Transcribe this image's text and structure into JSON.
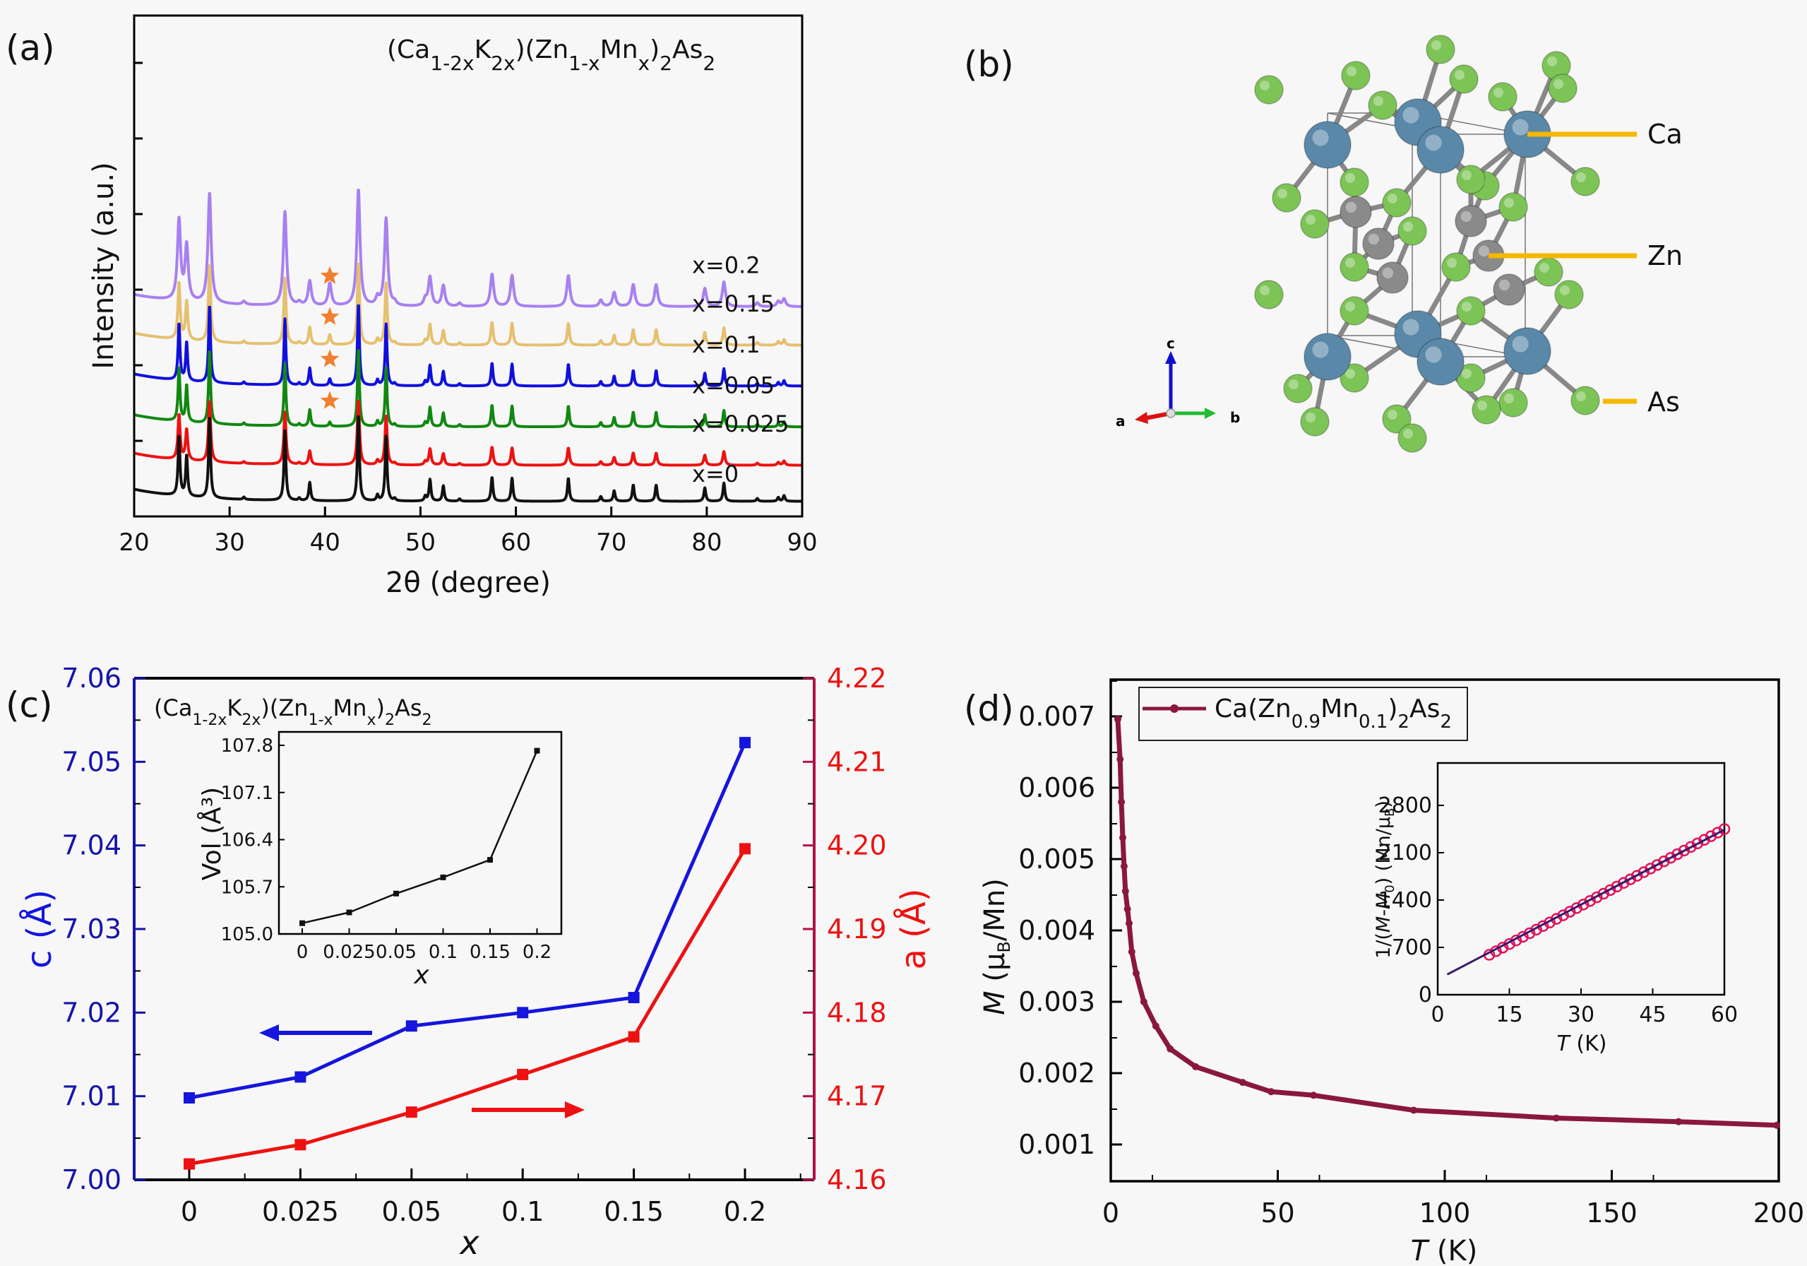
{
  "figure": {
    "panel_labels": [
      "(a)",
      "(b)",
      "(c)",
      "(d)"
    ]
  },
  "chart_data": [
    {
      "id": "a",
      "type": "line",
      "title": "(Ca1-2xK2x)(Zn1-xMnx)2As2",
      "title_parts": [
        [
          "(Ca",
          ""
        ],
        [
          "1-2x",
          "sub"
        ],
        [
          "K",
          ""
        ],
        [
          "2x",
          "sub"
        ],
        [
          ")(Zn",
          ""
        ],
        [
          "1-x",
          "sub"
        ],
        [
          "Mn",
          ""
        ],
        [
          "x",
          "sub"
        ],
        [
          ")",
          ""
        ],
        [
          "2",
          "sub"
        ],
        [
          "As",
          ""
        ],
        [
          "2",
          "sub"
        ]
      ],
      "xlabel": "2θ (degree)",
      "ylabel": "Intensity (a.u.)",
      "xlim": [
        20,
        90
      ],
      "xticks": [
        20,
        30,
        40,
        50,
        60,
        70,
        80,
        90
      ],
      "ylim": [
        0,
        10
      ],
      "impurity_marker": "star",
      "impurity_peak_2theta": 40.5,
      "base_peaks": [
        {
          "pos": 24.7,
          "h": 1.25
        },
        {
          "pos": 25.5,
          "h": 0.85
        },
        {
          "pos": 27.9,
          "h": 1.7
        },
        {
          "pos": 31.5,
          "h": 0.05
        },
        {
          "pos": 35.8,
          "h": 1.45
        },
        {
          "pos": 37.3,
          "h": 0.05
        },
        {
          "pos": 38.4,
          "h": 0.38
        },
        {
          "pos": 43.5,
          "h": 1.8
        },
        {
          "pos": 45.5,
          "h": 0.12
        },
        {
          "pos": 46.4,
          "h": 1.35
        },
        {
          "pos": 47.3,
          "h": 0.05
        },
        {
          "pos": 50.5,
          "h": 0.1
        },
        {
          "pos": 51.0,
          "h": 0.45
        },
        {
          "pos": 52.4,
          "h": 0.32
        },
        {
          "pos": 54.1,
          "h": 0.05
        },
        {
          "pos": 57.5,
          "h": 0.5
        },
        {
          "pos": 59.6,
          "h": 0.48
        },
        {
          "pos": 65.5,
          "h": 0.48
        },
        {
          "pos": 68.9,
          "h": 0.1
        },
        {
          "pos": 70.3,
          "h": 0.22
        },
        {
          "pos": 72.3,
          "h": 0.34
        },
        {
          "pos": 74.7,
          "h": 0.34
        },
        {
          "pos": 79.8,
          "h": 0.28
        },
        {
          "pos": 81.8,
          "h": 0.38
        },
        {
          "pos": 85.3,
          "h": 0.06
        },
        {
          "pos": 87.5,
          "h": 0.08
        },
        {
          "pos": 88.1,
          "h": 0.12
        }
      ],
      "series": [
        {
          "name": "x=0",
          "color": "#111111",
          "offset": 0.0,
          "scale": 1.0,
          "width": 0.12,
          "impurity": 0.0,
          "star": false
        },
        {
          "name": "x=0.025",
          "color": "#ee1111",
          "offset": 0.75,
          "scale": 0.75,
          "width": 0.14,
          "impurity": 0.0,
          "star": false
        },
        {
          "name": "x=0.05",
          "color": "#108810",
          "offset": 1.55,
          "scale": 0.9,
          "width": 0.12,
          "impurity": 0.1,
          "star": true
        },
        {
          "name": "x=0.1",
          "color": "#1010dd",
          "offset": 2.4,
          "scale": 0.95,
          "width": 0.12,
          "impurity": 0.15,
          "star": true
        },
        {
          "name": "x=0.15",
          "color": "#e6c070",
          "offset": 3.25,
          "scale": 0.95,
          "width": 0.14,
          "impurity": 0.22,
          "star": true
        },
        {
          "name": "x=0.2",
          "color": "#a880f0",
          "offset": 4.05,
          "scale": 1.35,
          "width": 0.2,
          "impurity": 0.35,
          "star": true
        }
      ]
    },
    {
      "id": "c",
      "type": "line",
      "title_parts": [
        [
          "(Ca",
          ""
        ],
        [
          "1-2x",
          "sub"
        ],
        [
          "K",
          ""
        ],
        [
          "2x",
          "sub"
        ],
        [
          ")(Zn",
          ""
        ],
        [
          "1-x",
          "sub"
        ],
        [
          "Mn",
          ""
        ],
        [
          "x",
          "sub"
        ],
        [
          ")",
          ""
        ],
        [
          "2",
          "sub"
        ],
        [
          "As",
          ""
        ],
        [
          "2",
          "sub"
        ]
      ],
      "categories": [
        "0",
        "0.025",
        "0.05",
        "0.1",
        "0.15",
        "0.2"
      ],
      "xlabel": "x",
      "series": [
        {
          "name": "c",
          "axis": "left",
          "color": "#1515dd",
          "values": [
            7.0098,
            7.0123,
            7.0184,
            7.02,
            7.0218,
            7.0523
          ]
        },
        {
          "name": "a",
          "axis": "right",
          "color": "#ee1111",
          "values": [
            4.1619,
            4.1642,
            4.1681,
            4.1726,
            4.1771,
            4.1996
          ]
        }
      ],
      "ylabel_left": "c (Å)",
      "ylabel_right": "a (Å)",
      "ylim_left": [
        7.0,
        7.06
      ],
      "yticks_left": [
        "7.00",
        "7.01",
        "7.02",
        "7.03",
        "7.04",
        "7.05",
        "7.06"
      ],
      "ylim_right": [
        4.16,
        4.22
      ],
      "yticks_right": [
        "4.16",
        "4.17",
        "4.18",
        "4.19",
        "4.20",
        "4.21",
        "4.22"
      ],
      "left_axis_color": "#1515aa",
      "right_axis_color": "#b0104a",
      "arrows": [
        {
          "direction": "left",
          "series": "c"
        },
        {
          "direction": "right",
          "series": "a"
        }
      ],
      "inset": {
        "type": "line",
        "categories": [
          "0",
          "0.025",
          "0.05",
          "0.1",
          "0.15",
          "0.2"
        ],
        "values": [
          105.16,
          105.32,
          105.6,
          105.84,
          106.1,
          107.72
        ],
        "ylabel": "Vol (Å³)",
        "xlabel": "x",
        "ylim": [
          105.0,
          108.0
        ],
        "yticks": [
          "105.0",
          "105.7",
          "106.4",
          "107.1",
          "107.8"
        ],
        "color": "#111111"
      }
    },
    {
      "id": "d",
      "type": "line",
      "legend": {
        "label_parts": [
          [
            "Ca(Zn",
            ""
          ],
          [
            "0.9",
            "sub"
          ],
          [
            "Mn",
            ""
          ],
          [
            "0.1",
            "sub"
          ],
          [
            ")",
            ""
          ],
          [
            "2",
            "sub"
          ],
          [
            "As",
            ""
          ],
          [
            "2",
            "sub"
          ]
        ],
        "placement": "top-left"
      },
      "color": "#8a1740",
      "xlabel": "T (K)",
      "ylabel": "M (μB/Mn)",
      "xlim": [
        0,
        200
      ],
      "xticks": [
        "0",
        "50",
        "100",
        "150",
        "200"
      ],
      "ylim": [
        0.00045,
        0.0075
      ],
      "yticks": [
        "0.001",
        "0.002",
        "0.003",
        "0.004",
        "0.005",
        "0.006",
        "0.007"
      ],
      "x": [
        2.1,
        2.8,
        3.2,
        3.6,
        4.0,
        4.4,
        5.0,
        5.5,
        6.3,
        7.6,
        9.9,
        13.5,
        17.8,
        25.4,
        39.5,
        48,
        60.7,
        90.7,
        133.4,
        170,
        199.4
      ],
      "values": [
        0.00696,
        0.0064,
        0.0058,
        0.0053,
        0.0049,
        0.00455,
        0.0043,
        0.0041,
        0.0037,
        0.0034,
        0.003,
        0.00266,
        0.00234,
        0.00209,
        0.00187,
        0.00174,
        0.00169,
        0.00148,
        0.00137,
        0.00132,
        0.00127
      ],
      "inset": {
        "type": "scatter",
        "xlabel": "T (K)",
        "ylabel": "1/(M-M0) (Mn/μB)",
        "xlim": [
          0,
          60
        ],
        "xticks": [
          "0",
          "15",
          "30",
          "45",
          "60"
        ],
        "ylim": [
          0,
          3000
        ],
        "yticks": [
          "0",
          "700",
          "1400",
          "2100",
          "2800"
        ],
        "data_range_T": [
          10.8,
          60
        ],
        "data_range_value": [
          590,
          2450
        ],
        "fit_range_T": [
          2,
          60
        ],
        "fit_range_value": [
          300,
          2440
        ],
        "marker_color": "#e0105a",
        "fit_color": "#3a1a6a",
        "n_points": 36
      }
    }
  ],
  "structure_b": {
    "atom_labels": [
      "Ca",
      "Zn",
      "As"
    ],
    "axis_labels": [
      "c",
      "a",
      "b"
    ],
    "colors": {
      "Ca": "#5a88a8",
      "Zn": "#8a8a8a",
      "As": "#7cc455",
      "leader": "#f5b800"
    }
  }
}
